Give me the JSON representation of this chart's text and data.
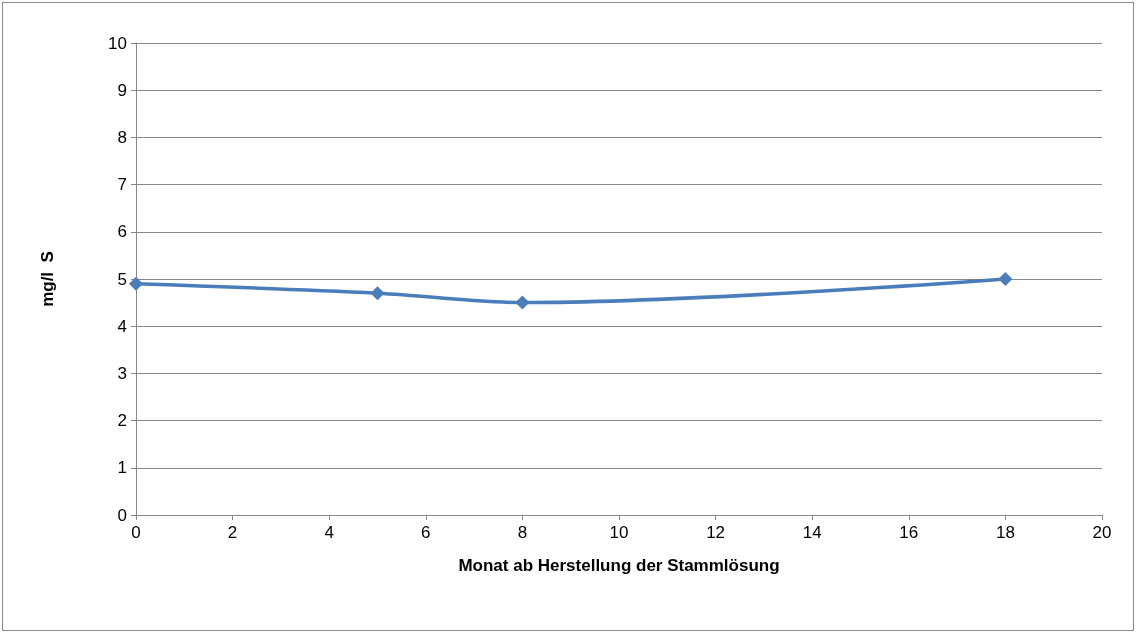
{
  "chart_data": {
    "type": "line",
    "xlabel": "Monat ab Herstellung der Stammlösung",
    "ylabel": "mg/l  S",
    "x": [
      0,
      5,
      8,
      18
    ],
    "series": [
      {
        "color": "#4a7ebb",
        "values": [
          4.9,
          4.7,
          4.5,
          5.0
        ]
      }
    ],
    "xlim": [
      0,
      20
    ],
    "xticks": [
      0,
      2,
      4,
      6,
      8,
      10,
      12,
      14,
      16,
      18,
      20
    ],
    "ylim": [
      0,
      10
    ],
    "yticks": [
      0,
      1,
      2,
      3,
      4,
      5,
      6,
      7,
      8,
      9,
      10
    ],
    "grid": "y",
    "marker": "diamond",
    "line_style": "solid"
  }
}
